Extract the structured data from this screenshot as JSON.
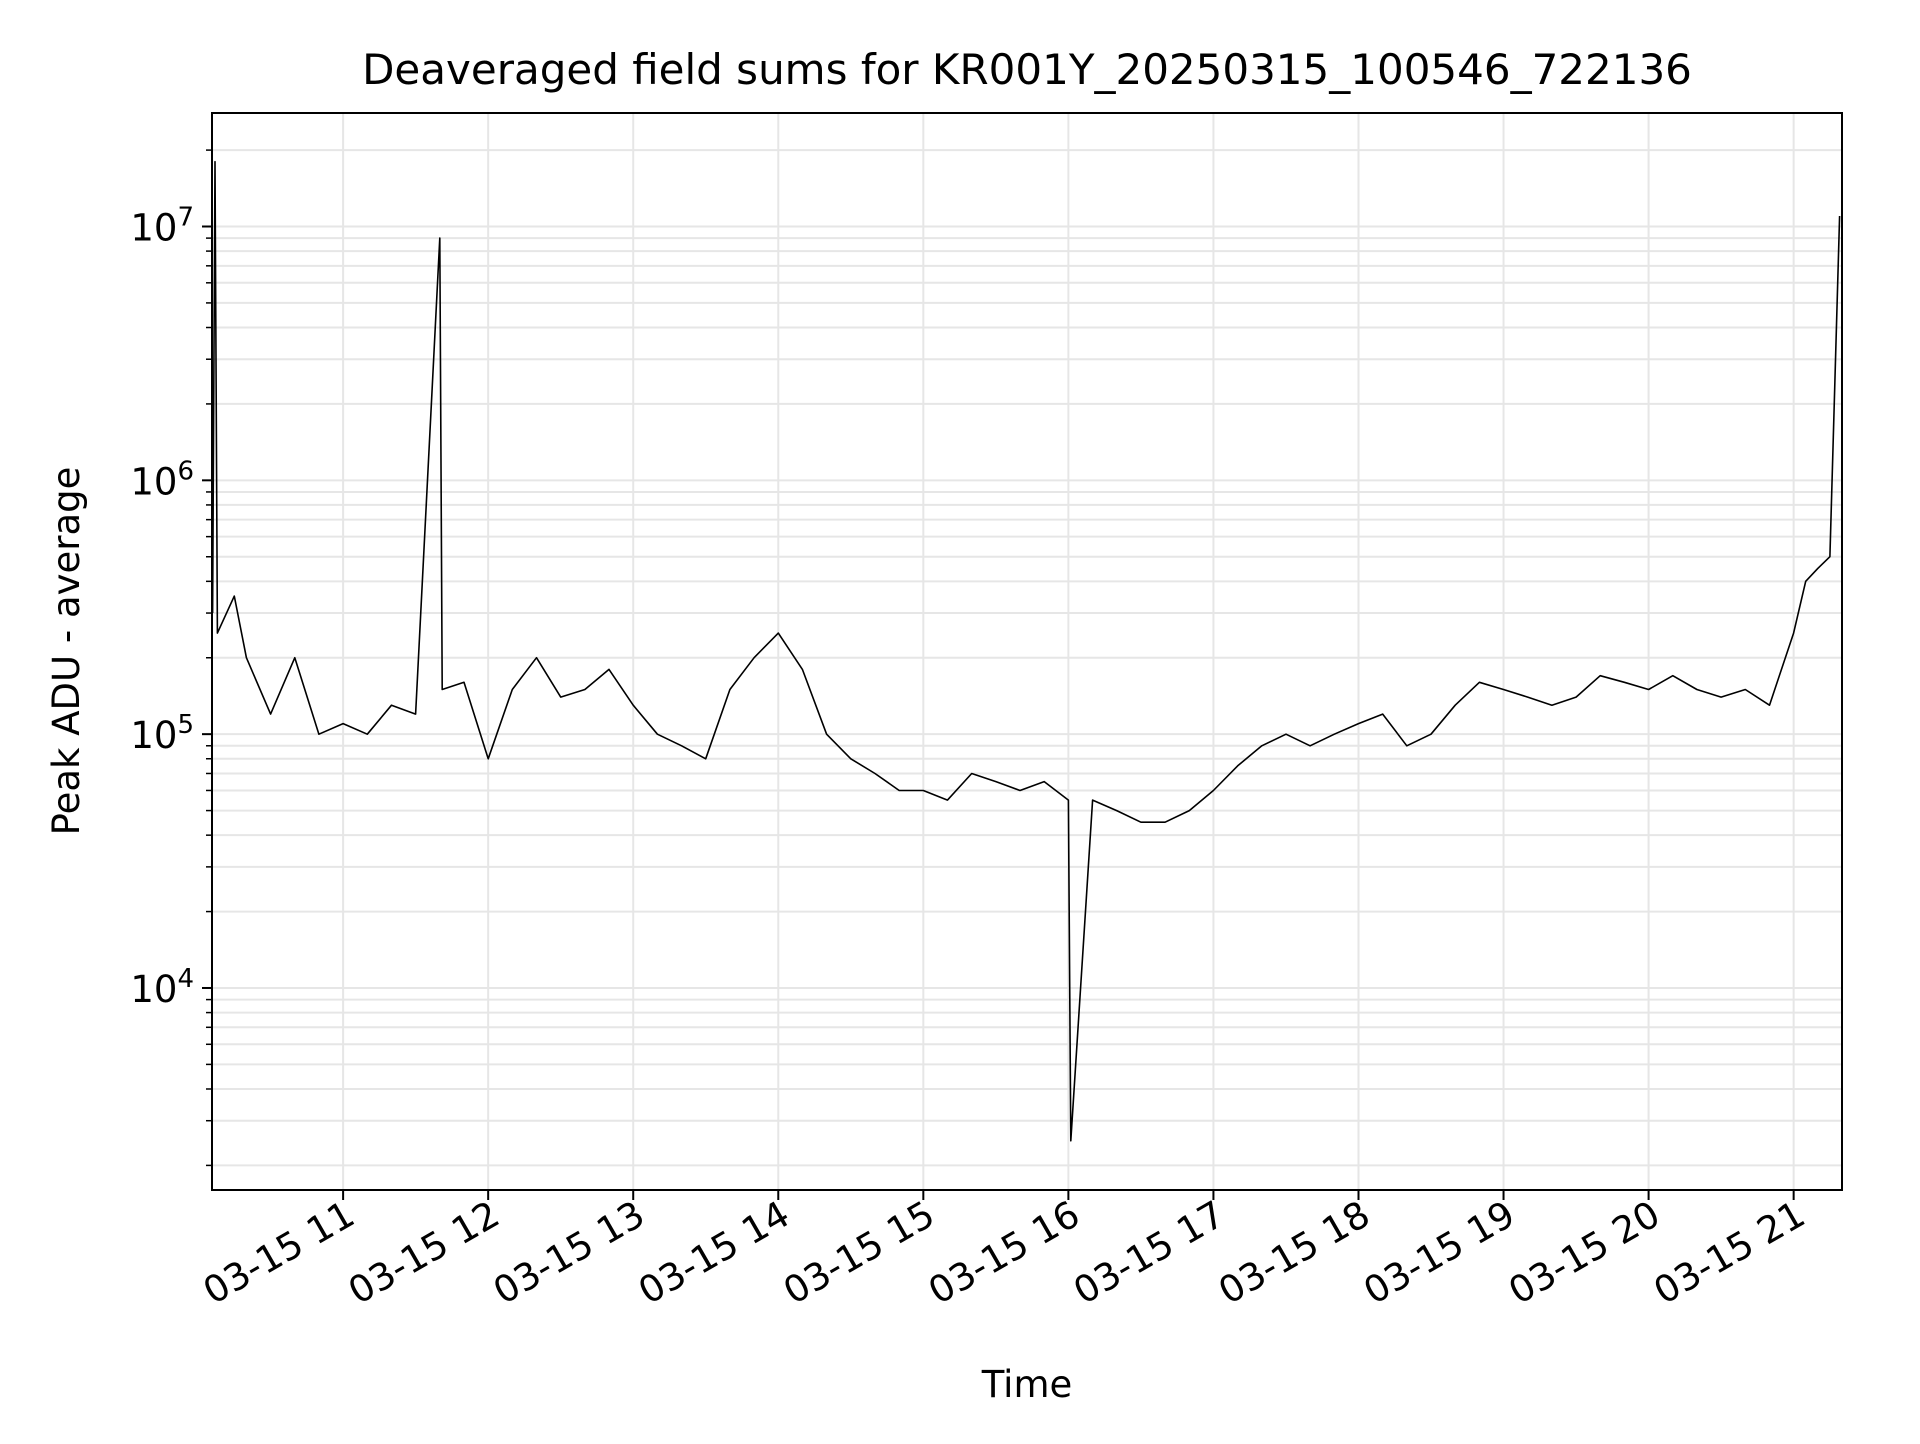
{
  "chart_data": {
    "type": "line",
    "title": "Deaveraged field sums for KR001Y_20250315_100546_722136",
    "xlabel": "Time",
    "ylabel": "Peak ADU - average",
    "yscale": "log",
    "ylim": [
      1600,
      28000000
    ],
    "xlim": [
      "2025-03-15 10:05:46",
      "2025-03-15 21:20:00"
    ],
    "grid": true,
    "x_ticks": [
      {
        "value": "2025-03-15 11:00",
        "label": "03-15 11"
      },
      {
        "value": "2025-03-15 12:00",
        "label": "03-15 12"
      },
      {
        "value": "2025-03-15 13:00",
        "label": "03-15 13"
      },
      {
        "value": "2025-03-15 14:00",
        "label": "03-15 14"
      },
      {
        "value": "2025-03-15 15:00",
        "label": "03-15 15"
      },
      {
        "value": "2025-03-15 16:00",
        "label": "03-15 16"
      },
      {
        "value": "2025-03-15 17:00",
        "label": "03-15 17"
      },
      {
        "value": "2025-03-15 18:00",
        "label": "03-15 18"
      },
      {
        "value": "2025-03-15 19:00",
        "label": "03-15 19"
      },
      {
        "value": "2025-03-15 20:00",
        "label": "03-15 20"
      },
      {
        "value": "2025-03-15 21:00",
        "label": "03-15 21"
      }
    ],
    "y_ticks": [
      {
        "value": 10000,
        "base": "10",
        "exp": "4"
      },
      {
        "value": 100000,
        "base": "10",
        "exp": "5"
      },
      {
        "value": 1000000,
        "base": "10",
        "exp": "6"
      },
      {
        "value": 10000000,
        "base": "10",
        "exp": "7"
      }
    ],
    "series": [
      {
        "color": "#000000",
        "points": [
          [
            "2025-03-15 10:06",
            300000
          ],
          [
            "2025-03-15 10:07",
            18000000
          ],
          [
            "2025-03-15 10:08",
            250000
          ],
          [
            "2025-03-15 10:15",
            350000
          ],
          [
            "2025-03-15 10:20",
            200000
          ],
          [
            "2025-03-15 10:30",
            120000
          ],
          [
            "2025-03-15 10:40",
            200000
          ],
          [
            "2025-03-15 10:50",
            100000
          ],
          [
            "2025-03-15 11:00",
            110000
          ],
          [
            "2025-03-15 11:10",
            100000
          ],
          [
            "2025-03-15 11:20",
            130000
          ],
          [
            "2025-03-15 11:30",
            120000
          ],
          [
            "2025-03-15 11:40",
            9000000
          ],
          [
            "2025-03-15 11:41",
            150000
          ],
          [
            "2025-03-15 11:50",
            160000
          ],
          [
            "2025-03-15 12:00",
            80000
          ],
          [
            "2025-03-15 12:10",
            150000
          ],
          [
            "2025-03-15 12:20",
            200000
          ],
          [
            "2025-03-15 12:30",
            140000
          ],
          [
            "2025-03-15 12:40",
            150000
          ],
          [
            "2025-03-15 12:50",
            180000
          ],
          [
            "2025-03-15 13:00",
            130000
          ],
          [
            "2025-03-15 13:10",
            100000
          ],
          [
            "2025-03-15 13:20",
            90000
          ],
          [
            "2025-03-15 13:30",
            80000
          ],
          [
            "2025-03-15 13:40",
            150000
          ],
          [
            "2025-03-15 13:50",
            200000
          ],
          [
            "2025-03-15 14:00",
            250000
          ],
          [
            "2025-03-15 14:10",
            180000
          ],
          [
            "2025-03-15 14:20",
            100000
          ],
          [
            "2025-03-15 14:30",
            80000
          ],
          [
            "2025-03-15 14:40",
            70000
          ],
          [
            "2025-03-15 14:50",
            60000
          ],
          [
            "2025-03-15 15:00",
            60000
          ],
          [
            "2025-03-15 15:10",
            55000
          ],
          [
            "2025-03-15 15:20",
            70000
          ],
          [
            "2025-03-15 15:30",
            65000
          ],
          [
            "2025-03-15 15:40",
            60000
          ],
          [
            "2025-03-15 15:50",
            65000
          ],
          [
            "2025-03-15 16:00",
            55000
          ],
          [
            "2025-03-15 16:01",
            2500
          ],
          [
            "2025-03-15 16:10",
            55000
          ],
          [
            "2025-03-15 16:20",
            50000
          ],
          [
            "2025-03-15 16:30",
            45000
          ],
          [
            "2025-03-15 16:40",
            45000
          ],
          [
            "2025-03-15 16:50",
            50000
          ],
          [
            "2025-03-15 17:00",
            60000
          ],
          [
            "2025-03-15 17:10",
            75000
          ],
          [
            "2025-03-15 17:20",
            90000
          ],
          [
            "2025-03-15 17:30",
            100000
          ],
          [
            "2025-03-15 17:40",
            90000
          ],
          [
            "2025-03-15 17:50",
            100000
          ],
          [
            "2025-03-15 18:00",
            110000
          ],
          [
            "2025-03-15 18:10",
            120000
          ],
          [
            "2025-03-15 18:20",
            90000
          ],
          [
            "2025-03-15 18:30",
            100000
          ],
          [
            "2025-03-15 18:40",
            130000
          ],
          [
            "2025-03-15 18:50",
            160000
          ],
          [
            "2025-03-15 19:00",
            150000
          ],
          [
            "2025-03-15 19:10",
            140000
          ],
          [
            "2025-03-15 19:20",
            130000
          ],
          [
            "2025-03-15 19:30",
            140000
          ],
          [
            "2025-03-15 19:40",
            170000
          ],
          [
            "2025-03-15 19:50",
            160000
          ],
          [
            "2025-03-15 20:00",
            150000
          ],
          [
            "2025-03-15 20:10",
            170000
          ],
          [
            "2025-03-15 20:20",
            150000
          ],
          [
            "2025-03-15 20:30",
            140000
          ],
          [
            "2025-03-15 20:40",
            150000
          ],
          [
            "2025-03-15 20:50",
            130000
          ],
          [
            "2025-03-15 21:00",
            250000
          ],
          [
            "2025-03-15 21:05",
            400000
          ],
          [
            "2025-03-15 21:10",
            450000
          ],
          [
            "2025-03-15 21:15",
            500000
          ],
          [
            "2025-03-15 21:19",
            11000000
          ]
        ]
      }
    ]
  }
}
